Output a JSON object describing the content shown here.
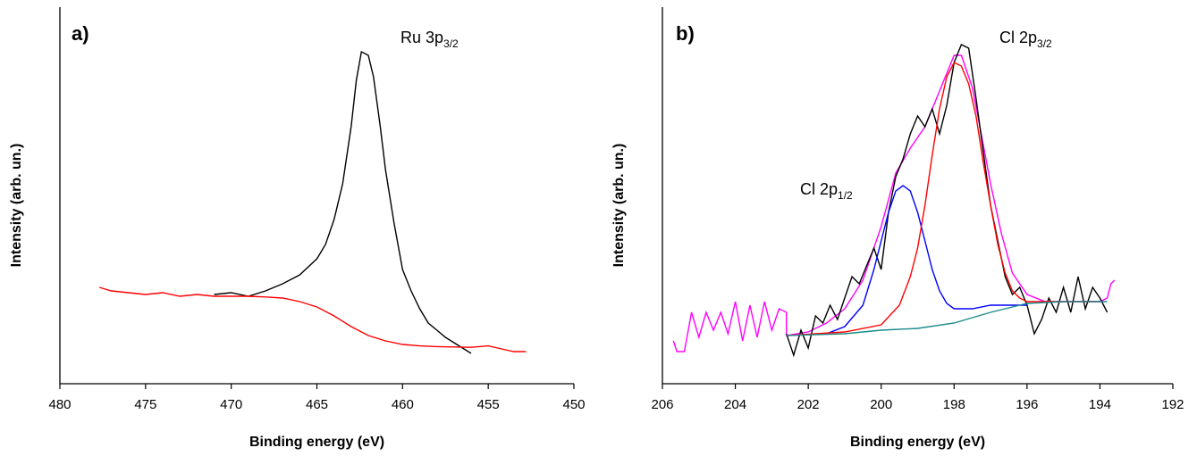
{
  "chart_data": [
    {
      "type": "line",
      "panel_label": "a)",
      "x_label": "Binding energy (eV)",
      "y_label": "Intensity (arb. un.)",
      "annotations": [
        {
          "text": "Ru 3p",
          "sub": "3/2"
        }
      ],
      "xlim": [
        480,
        450
      ],
      "xticks": [
        480,
        475,
        470,
        465,
        460,
        455,
        450
      ],
      "ylim": [
        0,
        100
      ],
      "series": [
        {
          "color": "#000000",
          "x": [
            471,
            470,
            469,
            468,
            467,
            466,
            465,
            464.5,
            464,
            463.5,
            463,
            462.7,
            462.4,
            462,
            461.7,
            461.3,
            461,
            460.5,
            460,
            459.5,
            459,
            458.5,
            458,
            457.5,
            457,
            456.5,
            456
          ],
          "values": [
            25,
            25.5,
            24.5,
            26,
            28,
            30.5,
            35,
            39,
            46,
            56,
            72,
            85,
            93,
            92,
            86,
            72,
            60,
            45,
            32,
            26,
            21,
            17,
            15,
            13,
            11.5,
            10,
            8.5
          ]
        },
        {
          "color": "#ff0000",
          "x": [
            477.7,
            477,
            476,
            475,
            474,
            473,
            472,
            471,
            470,
            469,
            468,
            467,
            466,
            465,
            464,
            463,
            462,
            461,
            460,
            459,
            458,
            457,
            456,
            455,
            454,
            453.5,
            452.8
          ],
          "values": [
            27,
            26,
            25.5,
            25,
            25.5,
            24.5,
            25,
            24.5,
            24.5,
            24.5,
            24.3,
            24,
            23,
            21.5,
            19,
            16,
            13.5,
            12,
            11,
            10.6,
            10.4,
            10.3,
            10.2,
            10.6,
            9.5,
            9,
            9
          ]
        }
      ]
    },
    {
      "type": "line",
      "panel_label": "b)",
      "x_label": "Binding energy (eV)",
      "y_label": "Intensity (arb. un.)",
      "annotations": [
        {
          "text": "Cl 2p",
          "sub": "1/2"
        },
        {
          "text": "Cl 2p",
          "sub": "3/2"
        }
      ],
      "xlim": [
        206,
        192
      ],
      "xticks": [
        206,
        204,
        202,
        200,
        198,
        196,
        194,
        192
      ],
      "ylim": [
        0,
        100
      ],
      "series": [
        {
          "color": "#ff00ff",
          "x": [
            205.7,
            205.6,
            205.4,
            205.2,
            205,
            204.8,
            204.6,
            204.4,
            204.2,
            204,
            203.8,
            203.6,
            203.4,
            203.2,
            203,
            202.8,
            202.6,
            202.6,
            202,
            201.5,
            201,
            200.5,
            200,
            199.6,
            199.2,
            198.8,
            198.4,
            198,
            197.8,
            197.5,
            197.2,
            197,
            196.7,
            196.4,
            196,
            195.5,
            195,
            194.5,
            194,
            193.8,
            193.7,
            193.6
          ],
          "values": [
            12,
            9,
            9,
            20,
            13,
            20,
            15,
            20,
            14,
            23,
            12,
            22,
            13,
            23,
            15,
            21,
            20,
            13.5,
            14.5,
            17,
            21,
            29,
            44,
            59,
            66,
            72,
            82,
            92,
            92,
            83,
            67,
            56,
            42,
            31,
            25,
            23,
            23,
            23,
            23,
            24,
            28,
            29
          ]
        },
        {
          "color": "#000000",
          "x": [
            202.6,
            202.4,
            202.2,
            202,
            201.8,
            201.6,
            201.4,
            201.2,
            201,
            200.8,
            200.6,
            200.4,
            200.2,
            200,
            199.8,
            199.6,
            199.4,
            199.2,
            199,
            198.8,
            198.6,
            198.4,
            198.2,
            198,
            197.8,
            197.6,
            197.4,
            197.2,
            197,
            196.8,
            196.6,
            196.4,
            196.2,
            196,
            195.8,
            195.6,
            195.4,
            195.2,
            195,
            194.8,
            194.6,
            194.4,
            194.2,
            194,
            193.8
          ],
          "values": [
            14,
            8,
            15,
            10,
            19,
            17,
            22,
            18,
            24,
            30,
            28,
            33,
            38,
            32,
            48,
            58,
            63,
            70,
            75,
            72,
            77,
            70,
            78,
            90,
            95,
            94,
            80,
            65,
            50,
            40,
            30,
            25,
            27,
            22,
            14,
            18,
            24,
            20,
            27,
            20,
            30,
            21,
            27,
            24,
            20
          ]
        },
        {
          "color": "#0000ff",
          "x": [
            202.6,
            201.5,
            201,
            200.5,
            200.2,
            200,
            199.8,
            199.6,
            199.4,
            199.2,
            199,
            198.8,
            198.6,
            198.4,
            198.2,
            198,
            197.5,
            197,
            196
          ],
          "values": [
            13.5,
            14,
            16,
            22,
            32,
            40,
            48,
            54,
            55.5,
            54,
            48,
            40,
            32,
            26,
            22.5,
            21,
            21,
            22,
            22
          ]
        },
        {
          "color": "#ff0000",
          "x": [
            202.6,
            201,
            200,
            199.5,
            199.2,
            199,
            198.8,
            198.6,
            198.4,
            198.2,
            198,
            197.8,
            197.6,
            197.4,
            197.2,
            197,
            196.8,
            196.6,
            196.4,
            196.2,
            196,
            195,
            194
          ],
          "values": [
            13.5,
            14.5,
            16.5,
            22,
            30,
            38,
            50,
            64,
            77,
            86,
            90,
            89,
            84,
            75,
            62,
            50,
            39,
            31,
            26,
            24,
            23,
            23,
            23
          ]
        },
        {
          "color": "#1a8a8a",
          "x": [
            202.6,
            201,
            200,
            199,
            198,
            197,
            196,
            195,
            194,
            193.8
          ],
          "values": [
            13.5,
            14,
            15,
            15.5,
            17,
            20,
            22.5,
            23,
            23,
            23
          ]
        }
      ]
    }
  ]
}
